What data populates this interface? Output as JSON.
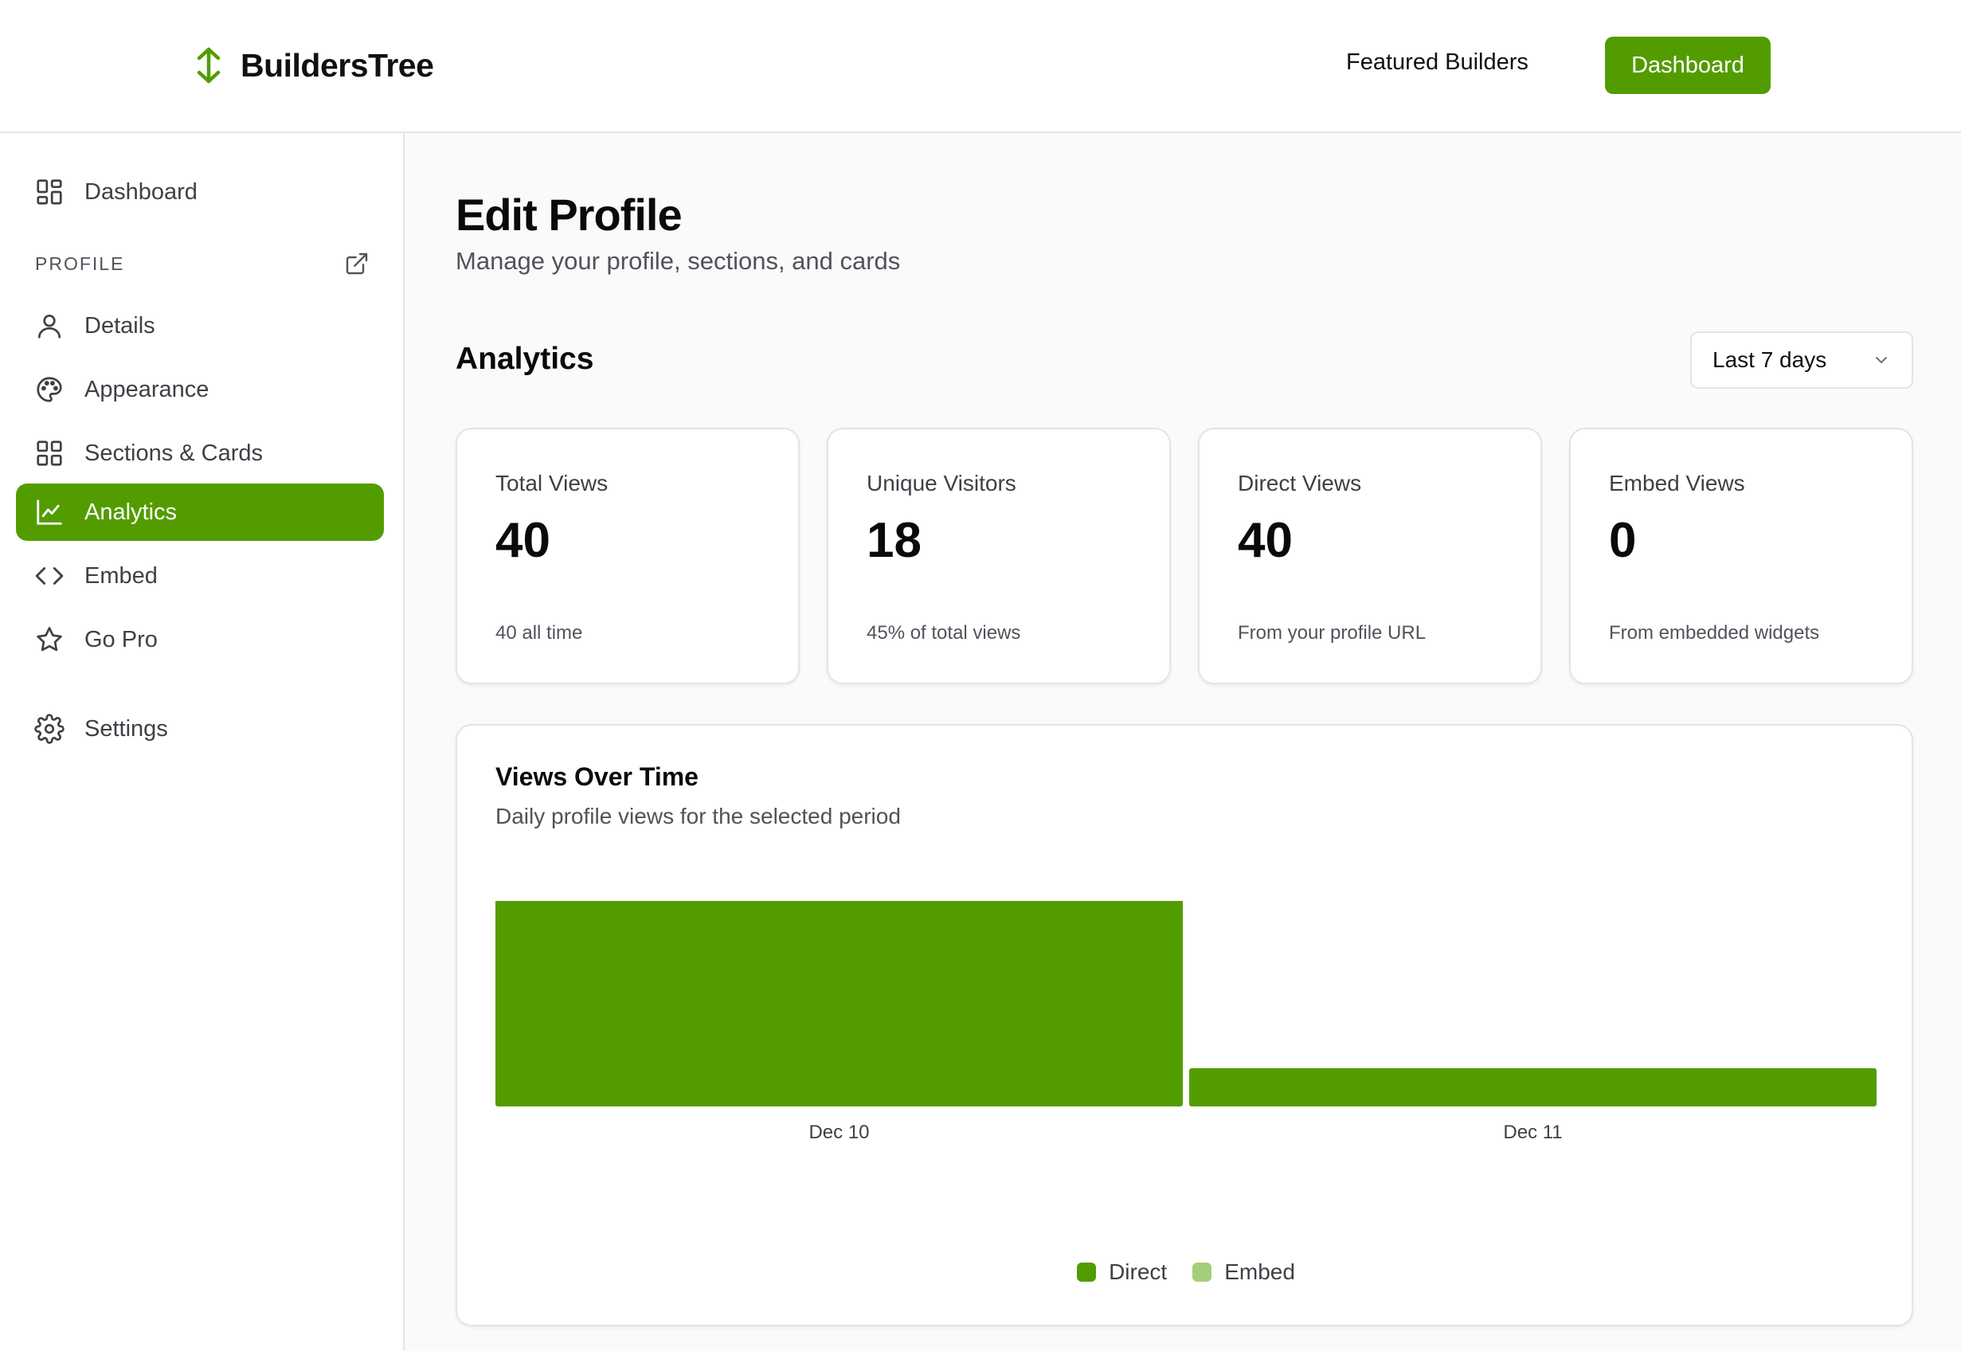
{
  "header": {
    "brand": "BuildersTree",
    "nav_link": "Featured Builders",
    "nav_button": "Dashboard"
  },
  "sidebar": {
    "dashboard": "Dashboard",
    "section_label": "PROFILE",
    "items": [
      {
        "label": "Details",
        "icon": "user-icon"
      },
      {
        "label": "Appearance",
        "icon": "palette-icon"
      },
      {
        "label": "Sections & Cards",
        "icon": "grid-icon"
      },
      {
        "label": "Analytics",
        "icon": "chart-line-icon",
        "active": true
      },
      {
        "label": "Embed",
        "icon": "code-icon"
      },
      {
        "label": "Go Pro",
        "icon": "star-icon"
      }
    ],
    "settings": "Settings"
  },
  "main": {
    "title": "Edit Profile",
    "subtitle": "Manage your profile, sections, and cards",
    "analytics_title": "Analytics",
    "range_select": {
      "value": "Last 7 days"
    },
    "stats": [
      {
        "label": "Total Views",
        "value": "40",
        "note": "40 all time"
      },
      {
        "label": "Unique Visitors",
        "value": "18",
        "note": "45% of total views"
      },
      {
        "label": "Direct Views",
        "value": "40",
        "note": "From your profile URL"
      },
      {
        "label": "Embed Views",
        "value": "0",
        "note": "From embedded widgets"
      }
    ],
    "chart_card": {
      "title": "Views Over Time",
      "subtitle": "Daily profile views for the selected period"
    }
  },
  "colors": {
    "accent": "#539c00",
    "embed": "#a3cf7a"
  },
  "chart_data": {
    "type": "bar",
    "stacked": true,
    "categories": [
      "Dec 10",
      "Dec 11"
    ],
    "series": [
      {
        "name": "Direct",
        "values": [
          34,
          6
        ],
        "color": "#539c00"
      },
      {
        "name": "Embed",
        "values": [
          0,
          0
        ],
        "color": "#a3cf7a"
      }
    ],
    "ylim": [
      0,
      40
    ],
    "grid": false,
    "legend": "bottom-center"
  }
}
